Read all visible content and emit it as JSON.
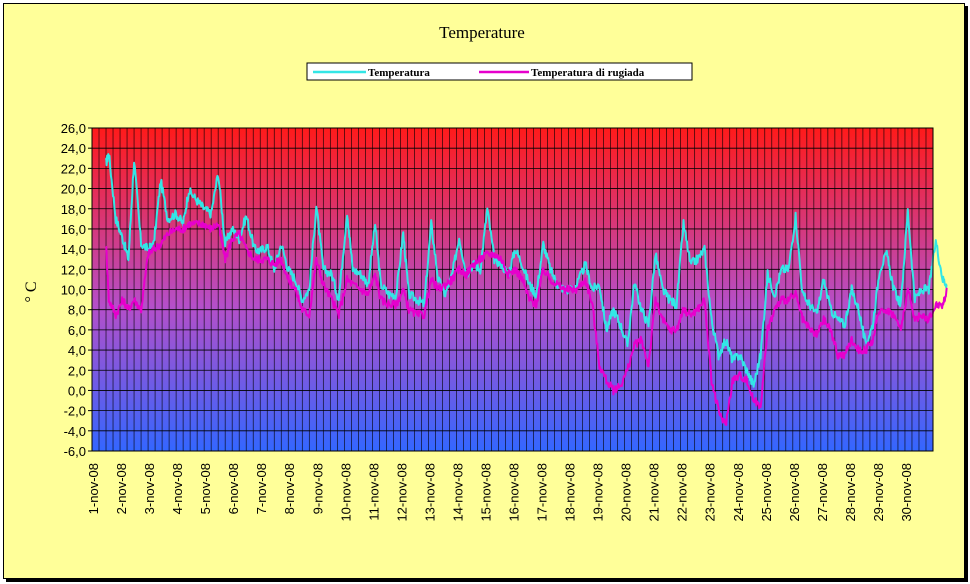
{
  "chart_data": {
    "type": "line",
    "title": "Temperature",
    "ylabel": "° C",
    "xlabel": "",
    "ylim": [
      -6,
      26
    ],
    "yticks": [
      "26,0",
      "24,0",
      "22,0",
      "20,0",
      "18,0",
      "16,0",
      "14,0",
      "12,0",
      "10,0",
      "8,0",
      "6,0",
      "4,0",
      "2,0",
      "0,0",
      "-2,0",
      "-4,0",
      "-6,0"
    ],
    "x_start_label": "1-nov-08",
    "x_end_label": "30-nov-08",
    "xticks": [
      "1-nov-08",
      "2-nov-08",
      "3-nov-08",
      "4-nov-08",
      "5-nov-08",
      "6-nov-08",
      "7-nov-08",
      "8-nov-08",
      "9-nov-08",
      "10-nov-08",
      "11-nov-08",
      "12-nov-08",
      "13-nov-08",
      "14-nov-08",
      "15-nov-08",
      "16-nov-08",
      "17-nov-08",
      "18-nov-08",
      "19-nov-08",
      "20-nov-08",
      "21-nov-08",
      "22-nov-08",
      "23-nov-08",
      "24-nov-08",
      "25-nov-08",
      "26-nov-08",
      "27-nov-08",
      "28-nov-08",
      "29-nov-08",
      "30-nov-08"
    ],
    "grid": true,
    "legend_position": "top",
    "gradient_colors": {
      "top": "#ff1a1a",
      "middle": "#b050d0",
      "bottom": "#3366ff"
    },
    "x_days": [
      0.5,
      0.6,
      0.85,
      1.1,
      1.3,
      1.5,
      1.75,
      2.0,
      2.2,
      2.45,
      2.7,
      3.0,
      3.25,
      3.45,
      3.75,
      4.0,
      4.25,
      4.5,
      4.75,
      5.0,
      5.25,
      5.5,
      5.8,
      6.0,
      6.25,
      6.5,
      6.75,
      7.0,
      7.25,
      7.5,
      7.75,
      8.0,
      8.25,
      8.55,
      8.8,
      9.1,
      9.3,
      9.6,
      9.85,
      10.1,
      10.3,
      10.6,
      10.85,
      11.1,
      11.3,
      11.6,
      11.85,
      12.1,
      12.35,
      12.6,
      12.85,
      13.1,
      13.35,
      13.6,
      13.85,
      14.1,
      14.35,
      14.6,
      14.85,
      15.1,
      15.35,
      15.6,
      15.85,
      16.1,
      16.35,
      16.6,
      16.85,
      17.0,
      17.3,
      17.6,
      17.85,
      18.1,
      18.35,
      18.6,
      18.85,
      19.1,
      19.35,
      19.6,
      19.85,
      20.1,
      20.35,
      20.6,
      20.85,
      21.1,
      21.35,
      21.6,
      21.85,
      22.1,
      22.35,
      22.6,
      22.85,
      23.1,
      23.35,
      23.6,
      23.85,
      24.1,
      24.35,
      24.6,
      24.85,
      25.1,
      25.35,
      25.6,
      25.85,
      26.1,
      26.35,
      26.6,
      26.85,
      27.1,
      27.35,
      27.6,
      27.85,
      28.1,
      28.35,
      28.6,
      28.85,
      29.1,
      29.35,
      29.6,
      29.85,
      30.1,
      30.35,
      30.5
    ],
    "series": [
      {
        "name": "Temperatura",
        "color": "#33e6e6",
        "values": [
          22.5,
          23.5,
          17.0,
          15.0,
          13.0,
          22.8,
          14.5,
          14.0,
          14.5,
          20.8,
          17.0,
          17.5,
          16.5,
          19.8,
          18.8,
          18.0,
          17.5,
          21.5,
          14.5,
          16.0,
          15.0,
          17.3,
          14.0,
          13.8,
          14.3,
          12.0,
          14.5,
          12.0,
          11.0,
          9.0,
          10.0,
          18.3,
          12.0,
          11.5,
          9.0,
          17.7,
          12.0,
          11.5,
          10.5,
          16.5,
          10.5,
          9.5,
          9.5,
          15.6,
          9.5,
          9.0,
          8.5,
          16.5,
          11.0,
          9.5,
          11.5,
          15.2,
          11.5,
          12.5,
          12.0,
          18.0,
          13.0,
          12.5,
          11.5,
          14.0,
          12.5,
          10.5,
          9.5,
          14.5,
          12.0,
          10.5,
          10.0,
          10.0,
          10.5,
          12.5,
          10.0,
          10.5,
          6.0,
          8.0,
          6.5,
          4.5,
          10.7,
          8.0,
          6.5,
          13.5,
          10.0,
          9.0,
          8.5,
          16.5,
          12.5,
          13.0,
          14.0,
          7.0,
          3.5,
          5.0,
          3.0,
          3.5,
          2.0,
          0.5,
          3.5,
          11.5,
          9.5,
          12.0,
          12.0,
          17.3,
          9.5,
          8.5,
          7.5,
          11.0,
          8.0,
          7.0,
          6.5,
          10.0,
          8.0,
          4.5,
          6.5,
          12.0,
          13.5,
          10.0,
          8.5,
          17.8,
          9.0,
          10.0,
          10.0,
          14.8,
          11.0,
          10.5
        ]
      },
      {
        "name": "Temperatura di rugiada",
        "color": "#e600cc",
        "values": [
          14.5,
          9.0,
          7.5,
          9.0,
          8.0,
          9.0,
          8.0,
          13.5,
          14.0,
          14.5,
          15.5,
          16.0,
          16.0,
          16.5,
          16.5,
          16.5,
          16.0,
          16.5,
          13.0,
          15.0,
          15.5,
          14.0,
          13.0,
          13.0,
          13.0,
          12.5,
          13.0,
          11.0,
          10.0,
          8.0,
          7.5,
          13.0,
          10.5,
          9.0,
          7.5,
          11.0,
          10.5,
          10.0,
          9.5,
          11.5,
          9.0,
          8.5,
          8.5,
          10.0,
          8.0,
          7.5,
          7.5,
          11.0,
          10.0,
          10.5,
          11.0,
          12.0,
          11.5,
          12.5,
          13.0,
          13.5,
          13.5,
          13.0,
          11.5,
          12.0,
          11.0,
          9.0,
          8.5,
          12.0,
          11.0,
          10.5,
          10.0,
          10.0,
          10.0,
          11.0,
          8.5,
          2.5,
          1.0,
          0.0,
          0.5,
          2.0,
          4.5,
          5.0,
          2.5,
          9.0,
          7.0,
          6.0,
          6.0,
          8.0,
          7.5,
          8.0,
          9.0,
          1.0,
          -2.0,
          -3.5,
          1.0,
          1.5,
          1.0,
          -1.0,
          -1.5,
          6.0,
          8.0,
          9.0,
          9.0,
          9.5,
          7.0,
          6.0,
          5.5,
          7.0,
          6.0,
          3.5,
          3.5,
          5.0,
          4.0,
          4.0,
          5.0,
          8.0,
          8.0,
          7.5,
          6.0,
          10.0,
          7.0,
          7.5,
          7.0,
          8.5,
          8.5,
          10.0
        ]
      }
    ]
  }
}
